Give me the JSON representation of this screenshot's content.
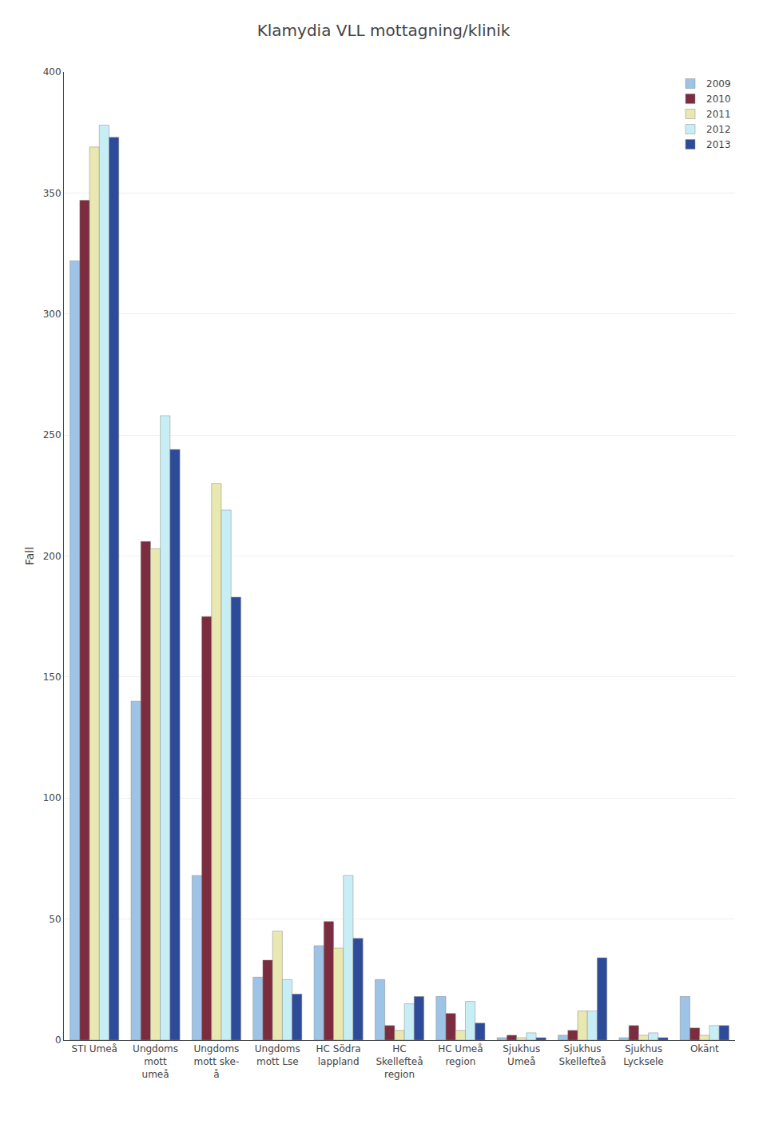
{
  "chart_data": {
    "type": "bar",
    "title": "Klamydia VLL mottagning/klinik",
    "y_label": "Fall",
    "categories": [
      "STI Umeå",
      "Ungdoms\nmott\numeå",
      "Ungdoms\nmott ske-\nå",
      "Ungdoms\nmott Lse",
      "HC Södra\nlappland",
      "HC\nSkellefteå\nregion",
      "HC Umeå\nregion",
      "Sjukhus\nUmeå",
      "Sjukhus\nSkellefteå",
      "Sjukhus\nLycksele",
      "Okänt"
    ],
    "series": [
      {
        "name": "2009",
        "color": "#9dc3e6",
        "values": [
          322,
          140,
          68,
          26,
          39,
          25,
          18,
          1,
          2,
          1,
          18
        ]
      },
      {
        "name": "2010",
        "color": "#7b2c3e",
        "values": [
          347,
          206,
          175,
          33,
          49,
          6,
          11,
          2,
          4,
          6,
          5
        ]
      },
      {
        "name": "2011",
        "color": "#e8e8b0",
        "values": [
          369,
          203,
          230,
          45,
          38,
          4,
          4,
          1,
          12,
          2,
          2
        ]
      },
      {
        "name": "2012",
        "color": "#c8eef5",
        "values": [
          378,
          258,
          219,
          25,
          68,
          15,
          16,
          3,
          12,
          3,
          6
        ]
      },
      {
        "name": "2013",
        "color": "#2e4b9a",
        "values": [
          373,
          244,
          183,
          19,
          42,
          18,
          7,
          1,
          34,
          1,
          6
        ]
      }
    ],
    "ylim": [
      0,
      400
    ],
    "yticks": [
      0,
      50,
      100,
      150,
      200,
      250,
      300,
      350,
      400
    ],
    "grid": true,
    "legend": "upper right"
  }
}
